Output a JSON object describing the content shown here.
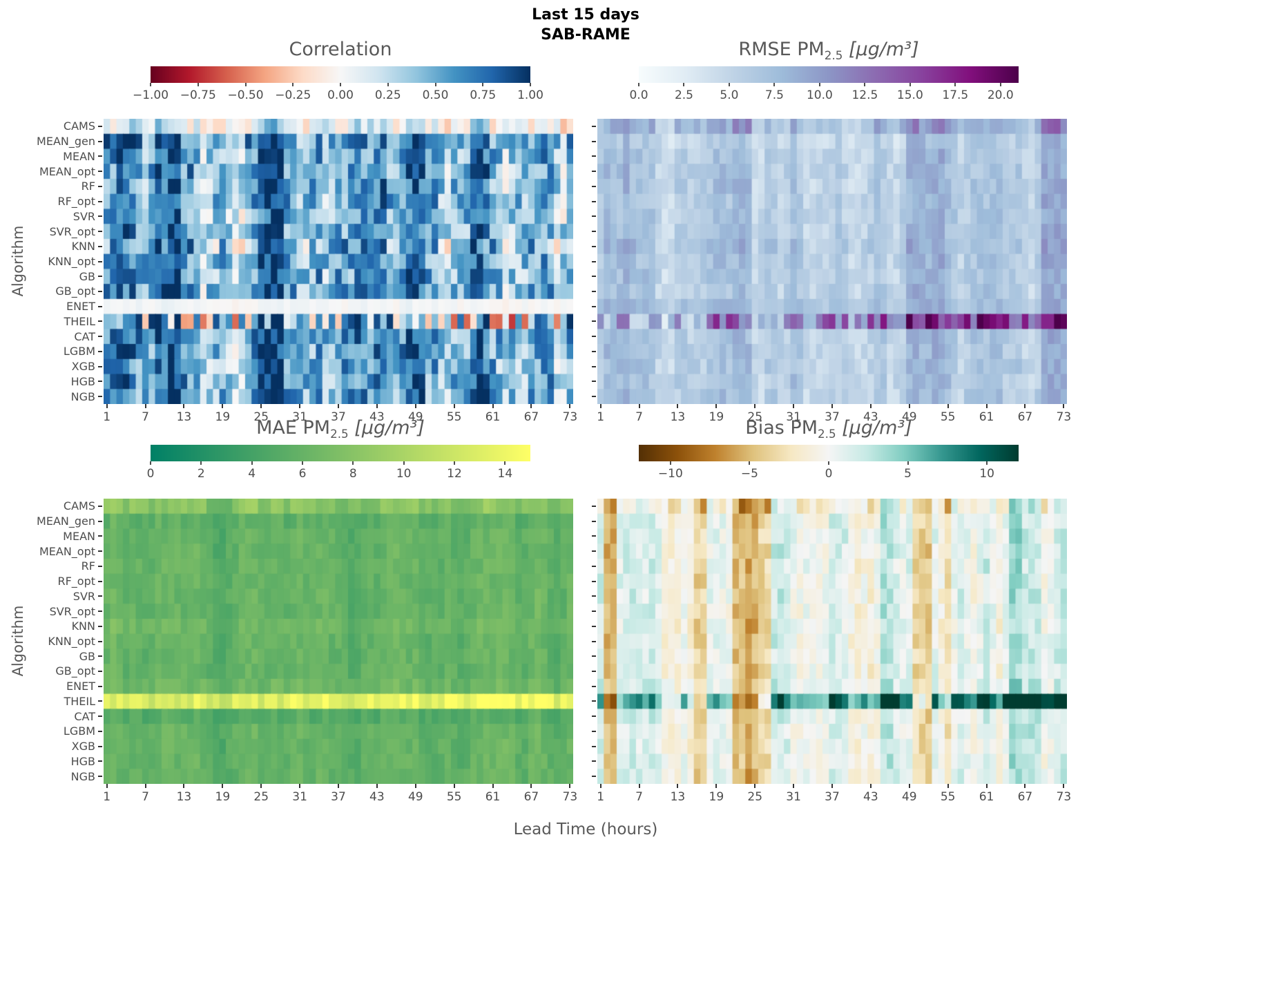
{
  "title": {
    "line1": "Last 15 days",
    "line2": "SAB-RAME"
  },
  "axes": {
    "y_label": "Algorithm",
    "x_label": "Lead Time (hours)"
  },
  "algorithms": [
    "CAMS",
    "MEAN_gen",
    "MEAN",
    "MEAN_opt",
    "RF",
    "RF_opt",
    "SVR",
    "SVR_opt",
    "KNN",
    "KNN_opt",
    "GB",
    "GB_opt",
    "ENET",
    "THEIL",
    "CAT",
    "LGBM",
    "XGB",
    "HGB",
    "NGB"
  ],
  "x_tick_labels": [
    1,
    7,
    13,
    19,
    25,
    31,
    37,
    43,
    49,
    55,
    61,
    67,
    73
  ],
  "n_cols": 73,
  "chart_data": [
    {
      "id": "correlation",
      "type": "heatmap",
      "title": {
        "prefix": "Correlation",
        "sub": "",
        "unit": ""
      },
      "cmap": "RdBu",
      "vmin": -1,
      "vmax": 1,
      "x_range": [
        1,
        73
      ],
      "cbar_tick_labels": [
        "−1.00",
        "−0.75",
        "−0.50",
        "−0.25",
        "0.00",
        "0.25",
        "0.50",
        "0.75",
        "1.00"
      ],
      "cbar_tick_values": [
        -1,
        -0.75,
        -0.5,
        -0.25,
        0,
        0.25,
        0.5,
        0.75,
        1
      ],
      "gen": {
        "seed": 11,
        "default": {
          "base": 0.55,
          "amp": 0.3,
          "noise": 0.32,
          "ramp": 0
        },
        "rows": {
          "CAMS": {
            "base": 0.1,
            "amp": 0.15,
            "noise": 0.3
          },
          "MEAN_gen": {
            "base": 0.62
          },
          "SVR": {
            "base": 0.5
          },
          "KNN": {
            "base": 0.45,
            "noise": 0.45
          },
          "ENET": {
            "base": 0.02,
            "amp": 0.03,
            "noise": 0.05
          },
          "THEIL": {
            "base": 0.3,
            "amp": 0.35,
            "noise": 0.8
          },
          "CAT": {
            "base": 0.6
          }
        },
        "bands": [
          [
            8,
            11,
            0.9
          ],
          [
            24,
            27,
            0.7
          ],
          [
            45,
            49,
            0.7
          ],
          [
            57,
            59,
            0.5
          ],
          [
            2,
            3,
            0.4
          ],
          [
            19,
            21,
            -0.8
          ],
          [
            32,
            34,
            -0.5
          ],
          [
            52,
            53,
            -0.6
          ],
          [
            62,
            65,
            -0.7
          ],
          [
            70,
            71,
            -0.5
          ],
          [
            14,
            15,
            -0.6
          ]
        ]
      }
    },
    {
      "id": "rmse",
      "type": "heatmap",
      "title": {
        "prefix": "RMSE PM",
        "sub": "2.5",
        "unit": " [μg/m³]"
      },
      "cmap": "BuPu",
      "vmin": 0,
      "vmax": 21,
      "x_range": [
        1,
        73
      ],
      "cbar_tick_labels": [
        "0.0",
        "2.5",
        "5.0",
        "7.5",
        "10.0",
        "12.5",
        "15.0",
        "17.5",
        "20.0"
      ],
      "cbar_tick_values": [
        0,
        2.5,
        5,
        7.5,
        10,
        12.5,
        15,
        17.5,
        20
      ],
      "gen": {
        "seed": 22,
        "default": {
          "base": 6.4,
          "amp": 2.4,
          "noise": 1.5,
          "ramp": 0
        },
        "rows": {
          "CAMS": {
            "base": 8.2,
            "amp": 3.5,
            "noise": 2.2
          },
          "MEAN_gen": {
            "base": 5.8
          },
          "KNN": {
            "base": 7.2
          },
          "ENET": {
            "base": 7.4,
            "amp": 2.0,
            "noise": 1.0
          },
          "THEIL": {
            "base": 8.0,
            "amp": 3.0,
            "noise": 5.5,
            "ramp": 10
          }
        },
        "bands": [
          [
            1,
            4,
            0.9
          ],
          [
            21,
            23,
            0.8
          ],
          [
            30,
            31,
            0.4
          ],
          [
            36,
            37,
            0.4
          ],
          [
            48,
            53,
            0.9
          ],
          [
            69,
            72,
            0.9
          ],
          [
            57,
            58,
            0.3
          ],
          [
            12,
            13,
            0.3
          ]
        ]
      }
    },
    {
      "id": "mae",
      "type": "heatmap",
      "title": {
        "prefix": "MAE PM",
        "sub": "2.5",
        "unit": " [μg/m³]"
      },
      "cmap": "summer",
      "vmin": 0,
      "vmax": 15,
      "x_range": [
        1,
        73
      ],
      "cbar_tick_labels": [
        "0",
        "2",
        "4",
        "6",
        "8",
        "10",
        "12",
        "14"
      ],
      "cbar_tick_values": [
        0,
        2,
        4,
        6,
        8,
        10,
        12,
        14
      ],
      "gen": {
        "seed": 33,
        "default": {
          "base": 5.6,
          "amp": 1.2,
          "noise": 0.8,
          "ramp": 0
        },
        "rows": {
          "CAMS": {
            "base": 7.4,
            "amp": 1.8,
            "noise": 1.2
          },
          "MEAN_gen": {
            "base": 5.2
          },
          "KNN": {
            "base": 6.2
          },
          "ENET": {
            "base": 6.1
          },
          "THEIL": {
            "base": 12.0,
            "amp": 1.5,
            "noise": 1.5,
            "ramp": 2
          },
          "CAT": {
            "base": 4.7
          }
        },
        "bands": [
          [
            1,
            4,
            0.5
          ],
          [
            10,
            12,
            0.35
          ],
          [
            21,
            23,
            0.45
          ],
          [
            48,
            53,
            0.55
          ],
          [
            69,
            72,
            0.5
          ],
          [
            36,
            37,
            0.3
          ]
        ]
      }
    },
    {
      "id": "bias",
      "type": "heatmap",
      "title": {
        "prefix": "Bias PM",
        "sub": "2.5",
        "unit": " [μg/m³]"
      },
      "cmap": "BrBG",
      "vmin": -12,
      "vmax": 12,
      "x_range": [
        1,
        73
      ],
      "cbar_tick_labels": [
        "−10",
        "−5",
        "0",
        "5",
        "10"
      ],
      "cbar_tick_values": [
        -10,
        -5,
        0,
        5,
        10
      ],
      "gen": {
        "seed": 44,
        "default": {
          "base": 0.4,
          "amp": 3.5,
          "noise": 1.5,
          "ramp": 0
        },
        "rows": {
          "CAMS": {
            "base": -0.5,
            "amp": 4.5,
            "noise": 2.8
          },
          "MEAN": {
            "base": 0.6
          },
          "KNN": {
            "base": 0.2
          },
          "ENET": {
            "base": 0.8
          },
          "THEIL": {
            "base": 4.0,
            "amp": 8.0,
            "noise": 2.0,
            "ramp": 7
          }
        },
        "bands": [
          [
            1,
            2,
            -1.2
          ],
          [
            12,
            16,
            -0.8
          ],
          [
            21,
            26,
            -1.5
          ],
          [
            42,
            43,
            -0.5
          ],
          [
            49,
            51,
            -1.3
          ],
          [
            53,
            54,
            -0.7
          ],
          [
            28,
            38,
            0.3
          ],
          [
            55,
            68,
            0.35
          ],
          [
            5,
            8,
            0.3
          ],
          [
            70,
            72,
            -0.2
          ]
        ]
      }
    }
  ]
}
